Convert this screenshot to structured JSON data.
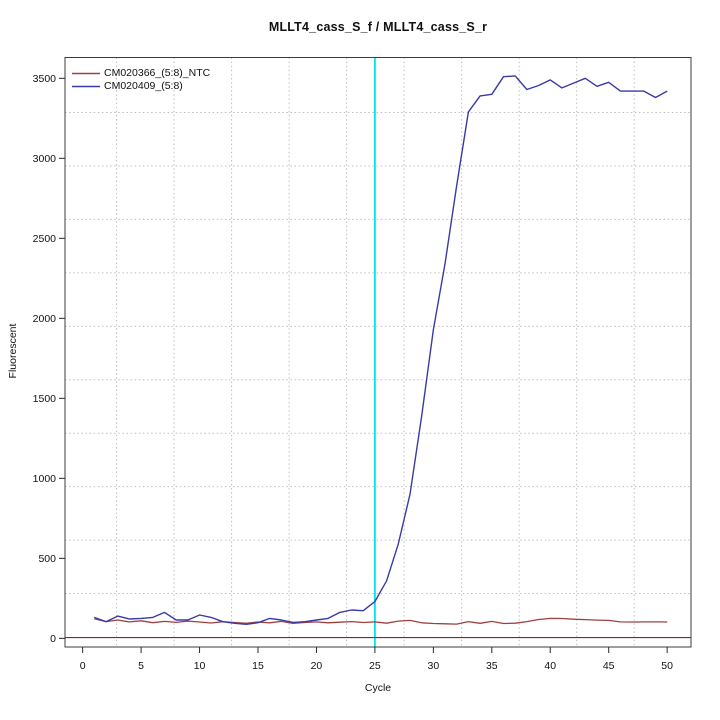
{
  "title": "MLLT4_cass_S_f / MLLT4_cass_S_r",
  "legend": {
    "position": "top-left",
    "items": [
      {
        "label": "CM020366_(5:8)_NTC",
        "color": "#9e4040"
      },
      {
        "label": "CM020409_(5:8)",
        "color": "#3a3aa6"
      }
    ]
  },
  "chart_data": {
    "type": "line",
    "title": "MLLT4_cass_S_f / MLLT4_cass_S_r",
    "xlabel": "Cycle",
    "ylabel": "Fluorescent",
    "xlim": [
      -1.51,
      52.04
    ],
    "ylim": [
      -54,
      3630
    ],
    "xticks": [
      0,
      5,
      10,
      15,
      20,
      25,
      30,
      35,
      40,
      45,
      50
    ],
    "yticks": [
      0,
      500,
      1000,
      1500,
      2000,
      2500,
      3000,
      3500
    ],
    "grid": {
      "style": "dotted",
      "color": "#bfbfbf",
      "h_values": [
        280,
        614,
        948,
        1282,
        1616,
        1950,
        2284,
        2618,
        2952,
        3286
      ],
      "v_values": [
        2.9,
        7.82,
        12.74,
        17.66,
        22.58,
        27.5,
        32.42,
        37.34,
        42.26,
        47.18
      ]
    },
    "threshold_line": {
      "y": 5,
      "color": "#8b2525"
    },
    "marker_line": {
      "x": 25,
      "color": "#00e6ea"
    },
    "x": [
      1,
      2,
      3,
      4,
      5,
      6,
      7,
      8,
      9,
      10,
      11,
      12,
      13,
      14,
      15,
      16,
      17,
      18,
      19,
      20,
      21,
      22,
      23,
      24,
      25,
      26,
      27,
      28,
      29,
      30,
      31,
      32,
      33,
      34,
      35,
      36,
      37,
      38,
      39,
      40,
      41,
      42,
      43,
      44,
      45,
      46,
      47,
      48,
      49,
      50
    ],
    "series": [
      {
        "name": "CM020366_(5:8)_NTC",
        "color": "#9e4040",
        "values": [
          122,
          105,
          115,
          103,
          110,
          98,
          106,
          100,
          108,
          102,
          96,
          104,
          99,
          94,
          102,
          97,
          106,
          94,
          99,
          103,
          97,
          101,
          105,
          99,
          103,
          95,
          108,
          112,
          97,
          93,
          91,
          89,
          105,
          94,
          106,
          93,
          95,
          105,
          118,
          125,
          124,
          120,
          117,
          114,
          112,
          103,
          102,
          103,
          103,
          102
        ]
      },
      {
        "name": "CM020409_(5:8)",
        "color": "#3a3aa6",
        "values": [
          131,
          104,
          139,
          121,
          125,
          131,
          162,
          115,
          115,
          146,
          131,
          104,
          94,
          88,
          98,
          125,
          115,
          100,
          104,
          115,
          125,
          162,
          177,
          173,
          230,
          360,
          590,
          900,
          1390,
          1930,
          2340,
          2830,
          3290,
          3390,
          3400,
          3510,
          3515,
          3430,
          3455,
          3490,
          3440,
          3470,
          3500,
          3450,
          3475,
          3420,
          3420,
          3420,
          3380,
          3420
        ]
      }
    ]
  }
}
